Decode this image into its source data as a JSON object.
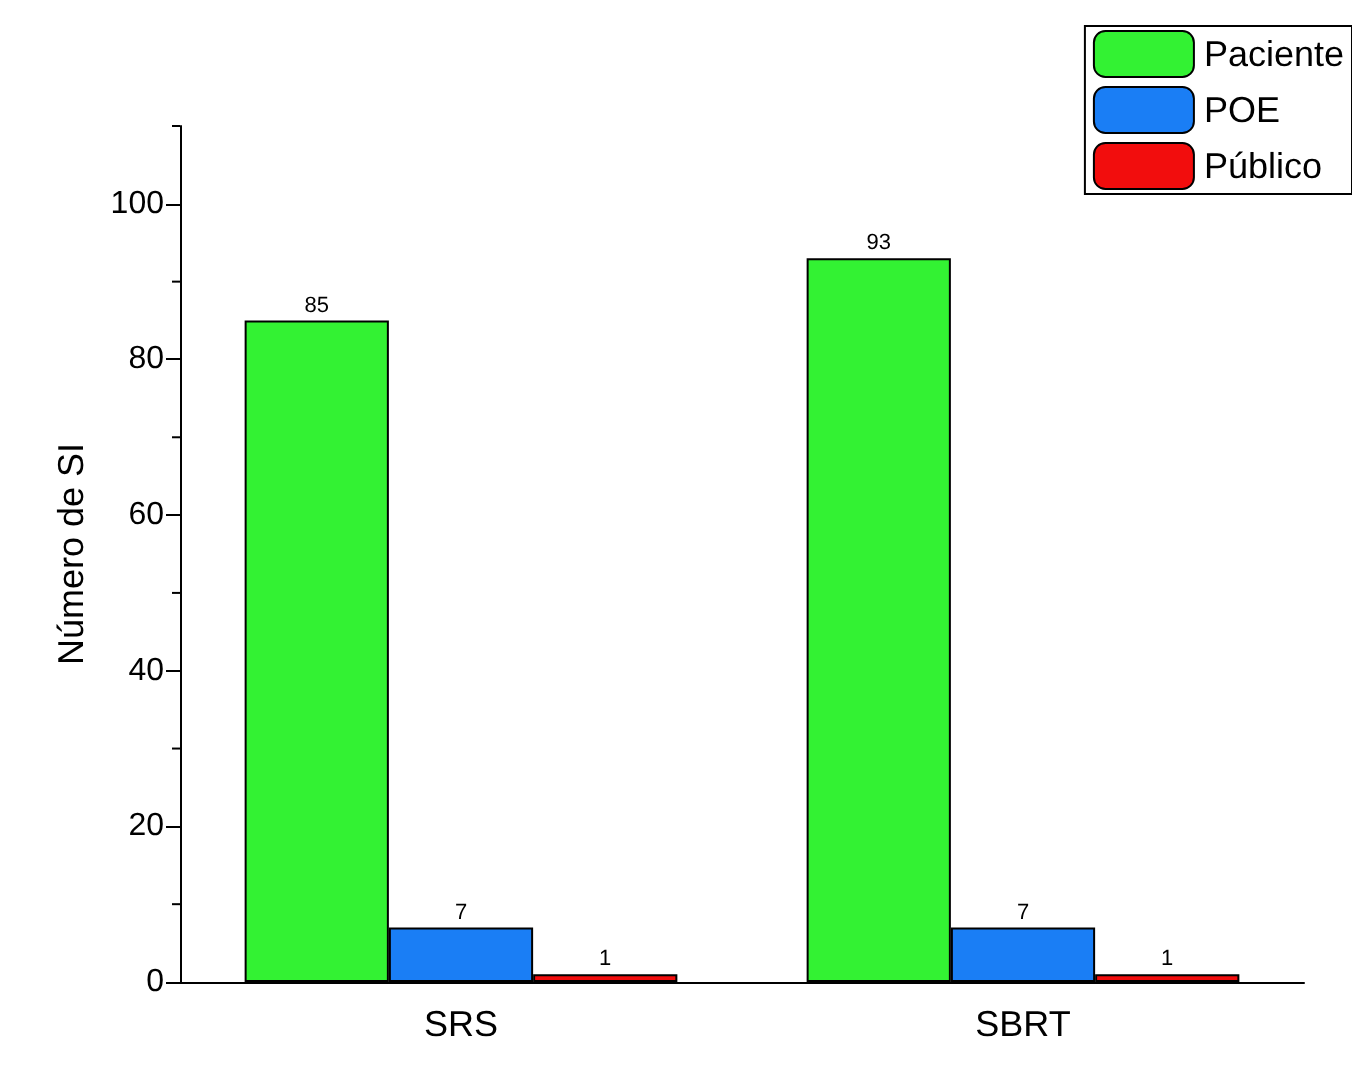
{
  "chart_data": {
    "type": "bar",
    "ylabel": "Número de SI",
    "categories": [
      "SRS",
      "SBRT"
    ],
    "series": [
      {
        "name": "Paciente",
        "color": "#33f233",
        "values": [
          85,
          93
        ]
      },
      {
        "name": "POE",
        "color": "#1a7ef5",
        "values": [
          7,
          7
        ]
      },
      {
        "name": "Público",
        "color": "#f20d0d",
        "values": [
          1,
          1
        ]
      }
    ],
    "ylim": [
      0,
      110
    ],
    "yticks": [
      0,
      20,
      40,
      60,
      80,
      100
    ],
    "data_labels": true,
    "legend": "top right",
    "grid": false
  }
}
